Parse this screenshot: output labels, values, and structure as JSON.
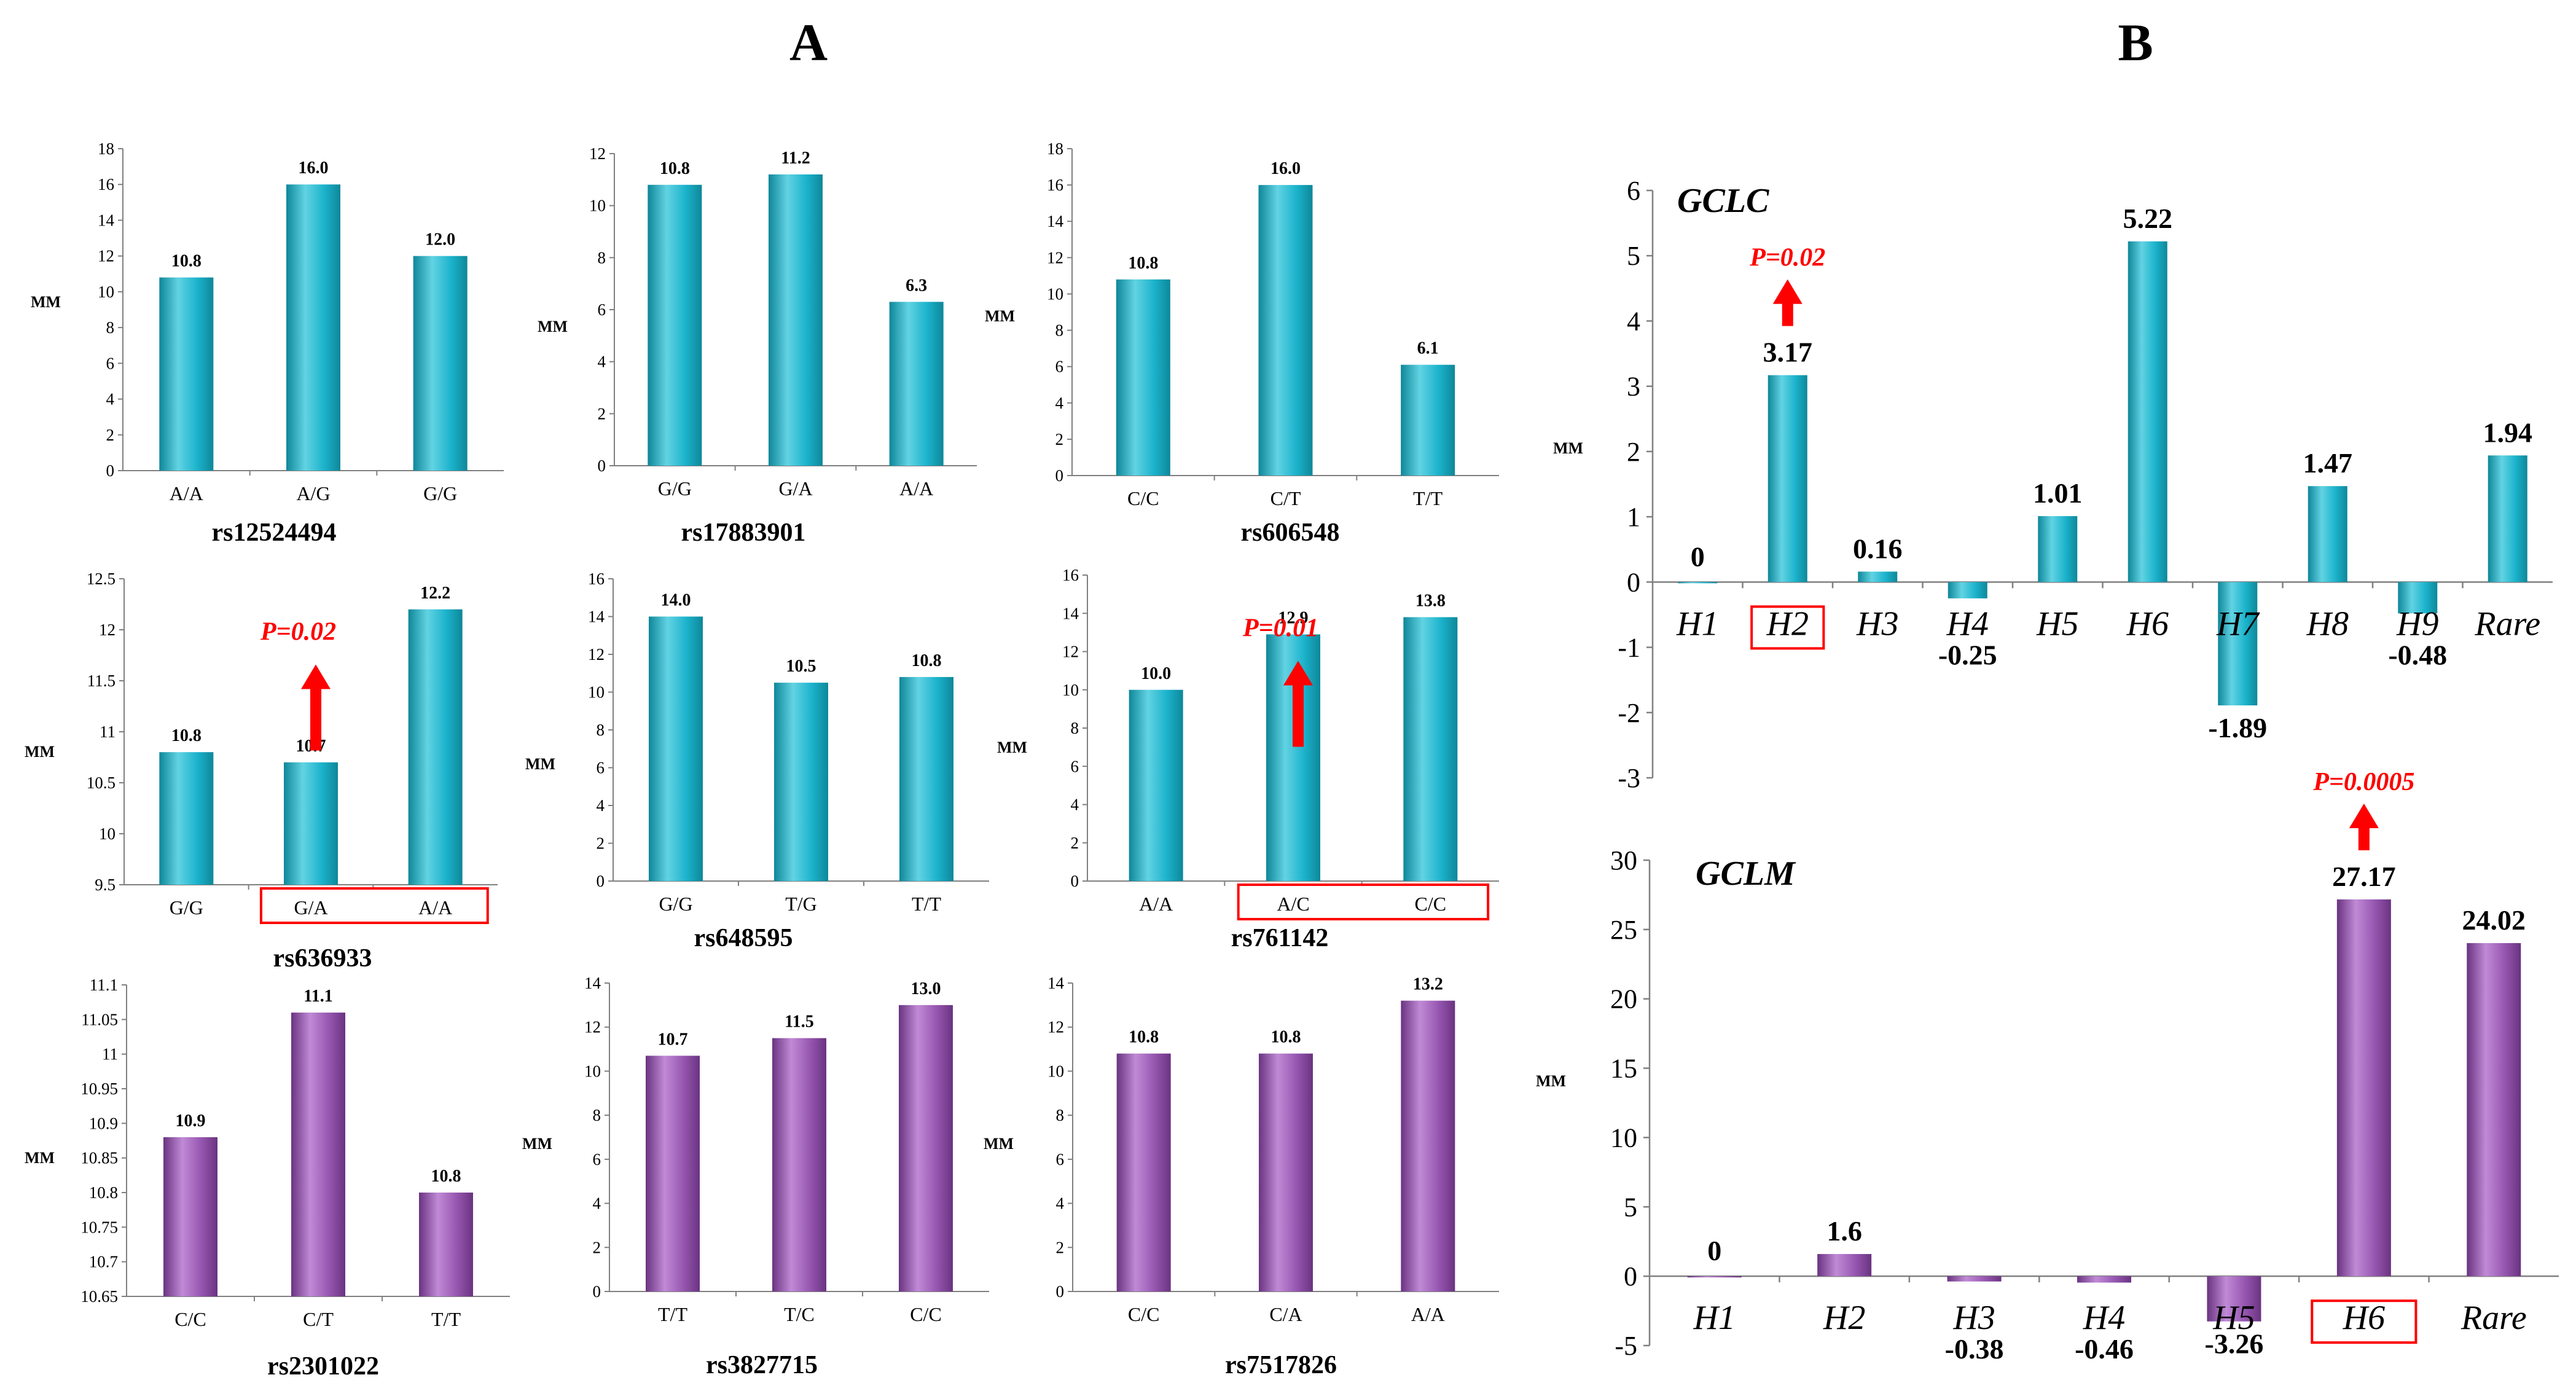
{
  "panel_labels": {
    "a": "A",
    "b": "B"
  },
  "colors": {
    "teal": "#1bb3cc",
    "teal_light": "#62d3e3",
    "teal_dark": "#0e8799",
    "purple": "#9656b0",
    "purple_light": "#c08ad6",
    "purple_dark": "#6a3381",
    "highlight": "#ff0000",
    "axis": "#808080"
  },
  "chart_data": [
    {
      "id": "rs12524494",
      "type": "bar",
      "title": "rs12524494",
      "ylabel": "MM",
      "categories": [
        "A/A",
        "A/G",
        "G/G"
      ],
      "values": [
        10.8,
        16.0,
        12.0
      ],
      "value_labels": [
        "10.8",
        "16.0",
        "12.0"
      ],
      "ylim": [
        0,
        18
      ],
      "yticks": [
        "0",
        "2",
        "4",
        "6",
        "8",
        "10",
        "12",
        "14",
        "16",
        "18"
      ],
      "color": "teal"
    },
    {
      "id": "rs17883901",
      "type": "bar",
      "title": "rs17883901",
      "ylabel": "MM",
      "categories": [
        "G/G",
        "G/A",
        "A/A"
      ],
      "values": [
        10.8,
        11.2,
        6.3
      ],
      "value_labels": [
        "10.8",
        "11.2",
        "6.3"
      ],
      "ylim": [
        0,
        12
      ],
      "yticks": [
        "0",
        "2",
        "4",
        "6",
        "8",
        "10",
        "12"
      ],
      "color": "teal"
    },
    {
      "id": "rs606548",
      "type": "bar",
      "title": "rs606548",
      "ylabel": "MM",
      "categories": [
        "C/C",
        "C/T",
        "T/T"
      ],
      "values": [
        10.8,
        16.0,
        6.1
      ],
      "value_labels": [
        "10.8",
        "16.0",
        "6.1"
      ],
      "ylim": [
        0,
        18
      ],
      "yticks": [
        "0",
        "2",
        "4",
        "6",
        "8",
        "10",
        "12",
        "14",
        "16",
        "18"
      ],
      "color": "teal"
    },
    {
      "id": "rs636933",
      "type": "bar",
      "title": "rs636933",
      "ylabel": "MM",
      "categories": [
        "G/G",
        "G/A",
        "A/A"
      ],
      "values": [
        10.8,
        10.7,
        12.2
      ],
      "value_labels": [
        "10.8",
        "10.7",
        "12.2"
      ],
      "ylim": [
        9.5,
        12.5
      ],
      "yticks": [
        "9.5",
        "10",
        "10.5",
        "11",
        "11.5",
        "12",
        "12.5"
      ],
      "color": "teal",
      "annotation": {
        "text": "P=0.02",
        "arrow": "up"
      },
      "highlight_categories": [
        "G/A",
        "A/A"
      ]
    },
    {
      "id": "rs648595",
      "type": "bar",
      "title": "rs648595",
      "ylabel": "MM",
      "categories": [
        "G/G",
        "T/G",
        "T/T"
      ],
      "values": [
        14.0,
        10.5,
        10.8
      ],
      "value_labels": [
        "14.0",
        "10.5",
        "10.8"
      ],
      "ylim": [
        0,
        16
      ],
      "yticks": [
        "0",
        "2",
        "4",
        "6",
        "8",
        "10",
        "12",
        "14",
        "16"
      ],
      "color": "teal"
    },
    {
      "id": "rs761142",
      "type": "bar",
      "title": "rs761142",
      "ylabel": "MM",
      "categories": [
        "A/A",
        "A/C",
        "C/C"
      ],
      "values": [
        10.0,
        12.9,
        13.8
      ],
      "value_labels": [
        "10.0",
        "12.9",
        "13.8"
      ],
      "ylim": [
        0,
        16
      ],
      "yticks": [
        "0",
        "2",
        "4",
        "6",
        "8",
        "10",
        "12",
        "14",
        "16"
      ],
      "color": "teal",
      "annotation": {
        "text": "P=0.01",
        "arrow": "up"
      },
      "highlight_categories": [
        "A/C",
        "C/C"
      ]
    },
    {
      "id": "rs2301022",
      "type": "bar",
      "title": "rs2301022",
      "ylabel": "MM",
      "categories": [
        "C/C",
        "C/T",
        "T/T"
      ],
      "values": [
        10.88,
        11.06,
        10.8
      ],
      "value_labels": [
        "10.9",
        "11.1",
        "10.8"
      ],
      "ylim": [
        10.65,
        11.1
      ],
      "yticks": [
        "10.65",
        "10.7",
        "10.75",
        "10.8",
        "10.85",
        "10.9",
        "10.95",
        "11",
        "11.05",
        "11.1"
      ],
      "color": "purple"
    },
    {
      "id": "rs3827715",
      "type": "bar",
      "title": "rs3827715",
      "ylabel": "MM",
      "categories": [
        "T/T",
        "T/C",
        "C/C"
      ],
      "values": [
        10.7,
        11.5,
        13.0
      ],
      "value_labels": [
        "10.7",
        "11.5",
        "13.0"
      ],
      "ylim": [
        0,
        14
      ],
      "yticks": [
        "0",
        "2",
        "4",
        "6",
        "8",
        "10",
        "12",
        "14"
      ],
      "color": "purple"
    },
    {
      "id": "rs7517826",
      "type": "bar",
      "title": "rs7517826",
      "ylabel": "MM",
      "categories": [
        "C/C",
        "C/A",
        "A/A"
      ],
      "values": [
        10.8,
        10.8,
        13.2
      ],
      "value_labels": [
        "10.8",
        "10.8",
        "13.2"
      ],
      "ylim": [
        0,
        14
      ],
      "yticks": [
        "0",
        "2",
        "4",
        "6",
        "8",
        "10",
        "12",
        "14"
      ],
      "color": "purple"
    },
    {
      "id": "GCLC",
      "type": "bar",
      "title": "GCLC",
      "ylabel": "MM",
      "categories": [
        "H1",
        "H2",
        "H3",
        "H4",
        "H5",
        "H6",
        "H7",
        "H8",
        "H9",
        "Rare"
      ],
      "values": [
        0,
        3.17,
        0.16,
        -0.25,
        1.01,
        5.22,
        -1.89,
        1.47,
        -0.48,
        1.94
      ],
      "value_labels": [
        "0",
        "3.17",
        "0.16",
        "-0.25",
        "1.01",
        "5.22",
        "-1.89",
        "1.47",
        "-0.48",
        "1.94"
      ],
      "ylim": [
        -3,
        6
      ],
      "yticks": [
        "-3",
        "-2",
        "-1",
        "0",
        "1",
        "2",
        "3",
        "4",
        "5",
        "6"
      ],
      "color": "teal",
      "annotation": {
        "text": "P=0.02",
        "arrow": "up",
        "category": "H2"
      },
      "highlight_categories": [
        "H2"
      ]
    },
    {
      "id": "GCLM",
      "type": "bar",
      "title": "GCLM",
      "ylabel": "MM",
      "categories": [
        "H1",
        "H2",
        "H3",
        "H4",
        "H5",
        "H6",
        "Rare"
      ],
      "values": [
        0,
        1.6,
        -0.38,
        -0.46,
        -3.26,
        27.17,
        24.02
      ],
      "value_labels": [
        "0",
        "1.6",
        "-0.38",
        "-0.46",
        "-3.26",
        "27.17",
        "24.02"
      ],
      "ylim": [
        -5,
        30
      ],
      "yticks": [
        "-5",
        "0",
        "5",
        "10",
        "15",
        "20",
        "25",
        "30"
      ],
      "color": "purple",
      "annotation": {
        "text": "P=0.0005",
        "arrow": "up",
        "category": "H6"
      },
      "highlight_categories": [
        "H6"
      ]
    }
  ]
}
